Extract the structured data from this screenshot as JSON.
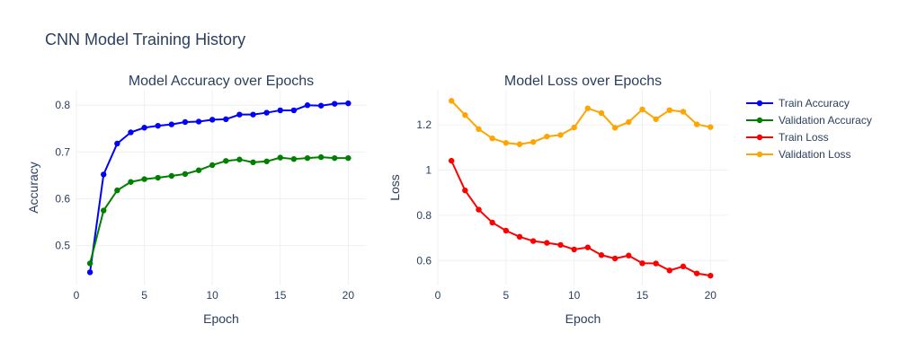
{
  "title": "CNN Model Training History",
  "chart_data": [
    {
      "type": "line",
      "title": "Model Accuracy over Epochs",
      "xlabel": "Epoch",
      "ylabel": "Accuracy",
      "xlim": [
        0,
        21.3
      ],
      "ylim": [
        0.415,
        0.833
      ],
      "xticks": [
        0,
        5,
        10,
        15,
        20
      ],
      "yticks": [
        0.5,
        0.6,
        0.7,
        0.8
      ],
      "ytick_labels": [
        "0.5",
        "0.6",
        "0.7",
        "0.8"
      ],
      "grid": true,
      "x": [
        1,
        2,
        3,
        4,
        5,
        6,
        7,
        8,
        9,
        10,
        11,
        12,
        13,
        14,
        15,
        16,
        17,
        18,
        19,
        20
      ],
      "series": [
        {
          "name": "Train Accuracy",
          "color": "#0000ff",
          "values": [
            0.443,
            0.652,
            0.718,
            0.742,
            0.752,
            0.756,
            0.759,
            0.764,
            0.765,
            0.769,
            0.77,
            0.78,
            0.78,
            0.784,
            0.789,
            0.789,
            0.8,
            0.799,
            0.803,
            0.804
          ]
        },
        {
          "name": "Validation Accuracy",
          "color": "#008000",
          "values": [
            0.462,
            0.575,
            0.618,
            0.636,
            0.642,
            0.645,
            0.649,
            0.653,
            0.661,
            0.672,
            0.681,
            0.684,
            0.678,
            0.68,
            0.688,
            0.685,
            0.687,
            0.689,
            0.687,
            0.687
          ]
        }
      ]
    },
    {
      "type": "line",
      "title": "Model Loss over Epochs",
      "xlabel": "Epoch",
      "ylabel": "Loss",
      "xlim": [
        0,
        21.3
      ],
      "ylim": [
        0.49,
        1.355
      ],
      "xticks": [
        0,
        5,
        10,
        15,
        20
      ],
      "yticks": [
        0.6,
        0.8,
        1.0,
        1.2
      ],
      "ytick_labels": [
        "0.6",
        "0.8",
        "1",
        "1.2"
      ],
      "grid": true,
      "x": [
        1,
        2,
        3,
        4,
        5,
        6,
        7,
        8,
        9,
        10,
        11,
        12,
        13,
        14,
        15,
        16,
        17,
        18,
        19,
        20
      ],
      "series": [
        {
          "name": "Train Loss",
          "color": "#ff0000",
          "values": [
            1.041,
            0.91,
            0.825,
            0.768,
            0.732,
            0.705,
            0.686,
            0.678,
            0.669,
            0.649,
            0.658,
            0.624,
            0.609,
            0.622,
            0.588,
            0.587,
            0.556,
            0.574,
            0.543,
            0.533
          ]
        },
        {
          "name": "Validation Loss",
          "color": "#ffa500",
          "values": [
            1.306,
            1.243,
            1.181,
            1.14,
            1.12,
            1.114,
            1.124,
            1.148,
            1.155,
            1.188,
            1.273,
            1.252,
            1.187,
            1.212,
            1.268,
            1.225,
            1.265,
            1.258,
            1.202,
            1.19
          ]
        }
      ]
    }
  ],
  "legend": {
    "position": "right",
    "items": [
      {
        "name": "Train Accuracy",
        "color": "#0000ff"
      },
      {
        "name": "Validation Accuracy",
        "color": "#008000"
      },
      {
        "name": "Train Loss",
        "color": "#ff0000"
      },
      {
        "name": "Validation Loss",
        "color": "#ffa500"
      }
    ]
  }
}
